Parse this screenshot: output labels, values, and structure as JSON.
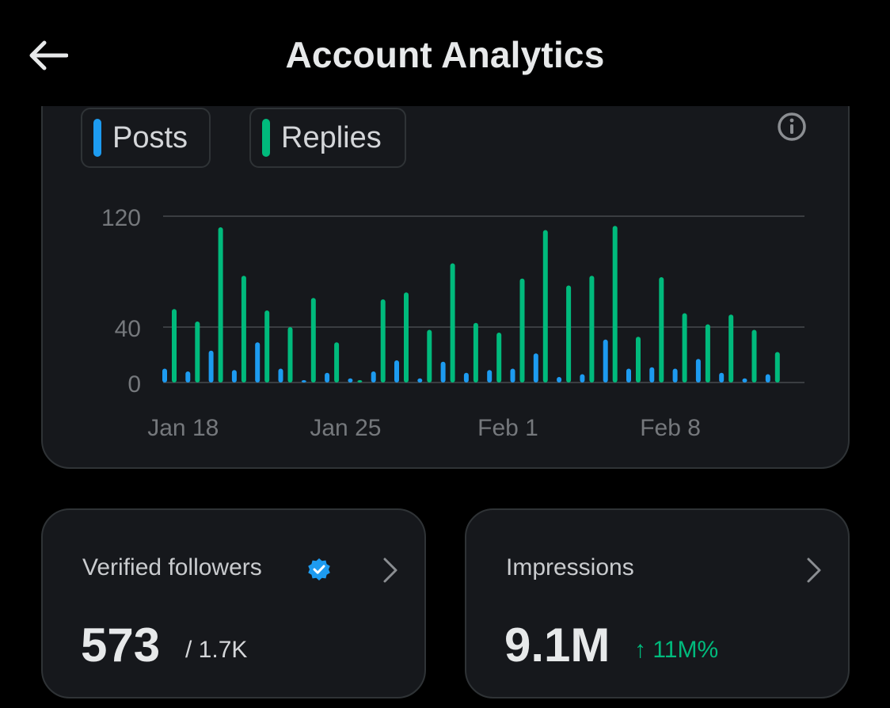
{
  "header": {
    "title": "Account Analytics",
    "back_icon": "arrow-left-icon"
  },
  "legend": [
    {
      "label": "Posts",
      "color": "#1d9bf0"
    },
    {
      "label": "Replies",
      "color": "#00ba7c"
    }
  ],
  "chart_data": {
    "type": "bar",
    "x": [
      "Jan 17",
      "Jan 18",
      "Jan 19",
      "Jan 20",
      "Jan 21",
      "Jan 22",
      "Jan 23",
      "Jan 24",
      "Jan 25",
      "Jan 26",
      "Jan 27",
      "Jan 28",
      "Jan 29",
      "Jan 30",
      "Jan 31",
      "Feb 1",
      "Feb 2",
      "Feb 3",
      "Feb 4",
      "Feb 5",
      "Feb 6",
      "Feb 7",
      "Feb 8",
      "Feb 9",
      "Feb 10",
      "Feb 11",
      "Feb 12",
      "Feb 13"
    ],
    "x_ticks": [
      "Jan 18",
      "Jan 25",
      "Feb 1",
      "Feb 8"
    ],
    "y_ticks": [
      0,
      40,
      120
    ],
    "ylim": [
      0,
      120
    ],
    "series": [
      {
        "name": "Posts",
        "color": "#1d9bf0",
        "values": [
          10,
          8,
          23,
          9,
          29,
          10,
          1,
          7,
          3,
          8,
          16,
          3,
          15,
          7,
          9,
          10,
          21,
          4,
          6,
          31,
          10,
          11,
          10,
          17,
          7,
          3,
          6,
          0
        ]
      },
      {
        "name": "Replies",
        "color": "#00ba7c",
        "values": [
          53,
          44,
          112,
          77,
          52,
          40,
          61,
          29,
          1,
          60,
          65,
          38,
          86,
          43,
          36,
          75,
          110,
          70,
          77,
          113,
          33,
          76,
          50,
          42,
          49,
          38,
          22,
          0
        ]
      }
    ]
  },
  "stats": [
    {
      "label": "Verified followers",
      "value": "573",
      "sub": "/ 1.7K",
      "badge_icon": "verified-badge-icon"
    },
    {
      "label": "Impressions",
      "value": "9.1M",
      "change": "↑ 11M%",
      "change_color": "#00ba7c"
    }
  ]
}
